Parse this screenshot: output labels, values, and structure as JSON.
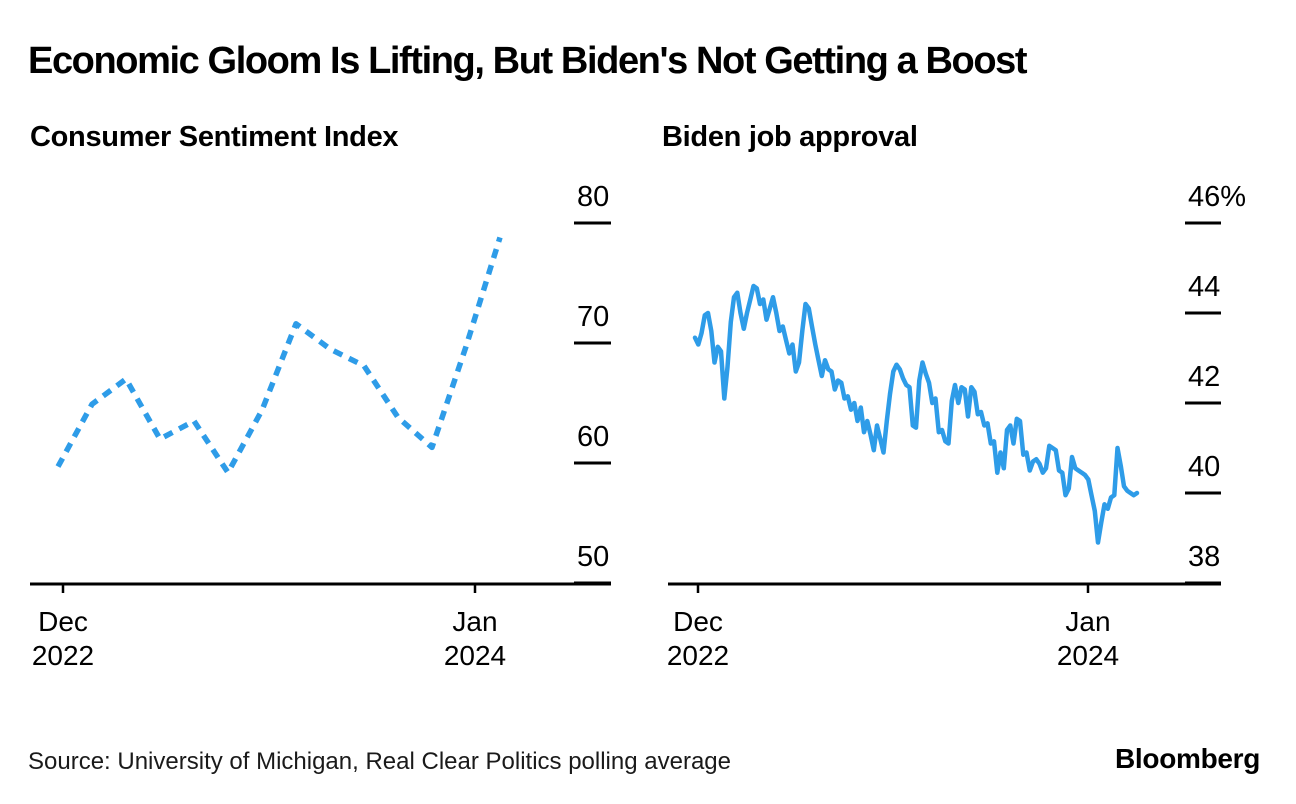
{
  "title": "Economic Gloom Is Lifting, But Biden's Not Getting a Boost",
  "footer": {
    "source": "Source: University of Michigan, Real Clear Politics polling average",
    "brand": "Bloomberg"
  },
  "colors": {
    "line": "#2E9CE8",
    "text": "#000000",
    "muted_text": "#1a1a1a",
    "background": "#FFFFFF"
  },
  "chart_data": [
    {
      "type": "line",
      "title": "Consumer Sentiment Index",
      "line_style": "dashed",
      "frequency": "monthly",
      "x": [
        "Dec 2022",
        "Jan 2023",
        "Feb 2023",
        "Mar 2023",
        "Apr 2023",
        "May 2023",
        "Jun 2023",
        "Jul 2023",
        "Aug 2023",
        "Sep 2023",
        "Oct 2023",
        "Nov 2023",
        "Dec 2023",
        "Jan 2024"
      ],
      "values": [
        59.7,
        64.9,
        67.0,
        62.0,
        63.5,
        59.2,
        64.4,
        71.6,
        69.5,
        68.1,
        63.8,
        61.3,
        69.7,
        78.8
      ],
      "ylim": [
        50,
        81
      ],
      "yticks": [
        80,
        70,
        60,
        50
      ],
      "ytick_labels": [
        "80",
        "70",
        "60",
        "50"
      ],
      "xtick_labels": [
        "Dec\n2022",
        "Jan\n2024"
      ],
      "grid": "tick-dashes-right",
      "legend": "none"
    },
    {
      "type": "line",
      "title": "Biden job approval",
      "line_style": "solid",
      "frequency": "daily polling average (sampled)",
      "x_start": "Dec 2022",
      "x_end": "Jan 2024",
      "values": [
        43.45,
        43.3,
        43.55,
        43.95,
        44.0,
        43.6,
        42.9,
        43.25,
        43.15,
        42.1,
        42.8,
        43.8,
        44.35,
        44.45,
        44.0,
        43.65,
        44.0,
        44.3,
        44.6,
        44.55,
        44.2,
        44.3,
        43.85,
        44.1,
        44.35,
        44.0,
        43.6,
        43.7,
        43.4,
        43.1,
        43.3,
        42.7,
        42.9,
        43.6,
        44.2,
        44.1,
        43.7,
        43.3,
        42.95,
        42.6,
        42.95,
        42.75,
        42.7,
        42.3,
        42.5,
        42.45,
        42.1,
        42.15,
        41.85,
        42.0,
        41.6,
        41.9,
        41.35,
        41.6,
        41.3,
        40.95,
        41.5,
        41.2,
        40.9,
        41.6,
        42.2,
        42.7,
        42.85,
        42.75,
        42.55,
        42.4,
        42.35,
        41.5,
        41.45,
        42.5,
        42.9,
        42.65,
        42.45,
        42.0,
        42.1,
        41.35,
        41.4,
        41.15,
        41.1,
        42.05,
        42.4,
        42.0,
        42.35,
        42.3,
        41.7,
        42.35,
        42.25,
        41.75,
        41.8,
        41.5,
        41.55,
        41.1,
        41.15,
        40.45,
        40.9,
        40.55,
        41.4,
        41.5,
        41.1,
        41.65,
        41.6,
        40.85,
        40.9,
        40.5,
        40.7,
        40.75,
        40.65,
        40.45,
        40.55,
        41.05,
        41.0,
        40.95,
        40.5,
        40.45,
        39.95,
        40.1,
        40.8,
        40.55,
        40.5,
        40.45,
        40.4,
        40.3,
        39.95,
        39.6,
        38.9,
        39.35,
        39.75,
        39.65,
        39.9,
        39.95,
        41.0,
        40.6,
        40.15,
        40.05,
        40.0,
        39.95,
        40.0
      ],
      "ylim": [
        38,
        46.5
      ],
      "yticks": [
        46,
        44,
        42,
        40,
        38
      ],
      "ytick_labels": [
        "46%",
        "44",
        "42",
        "40",
        "38"
      ],
      "xtick_labels": [
        "Dec\n2022",
        "Jan\n2024"
      ],
      "grid": "tick-dashes-right",
      "legend": "none"
    }
  ]
}
